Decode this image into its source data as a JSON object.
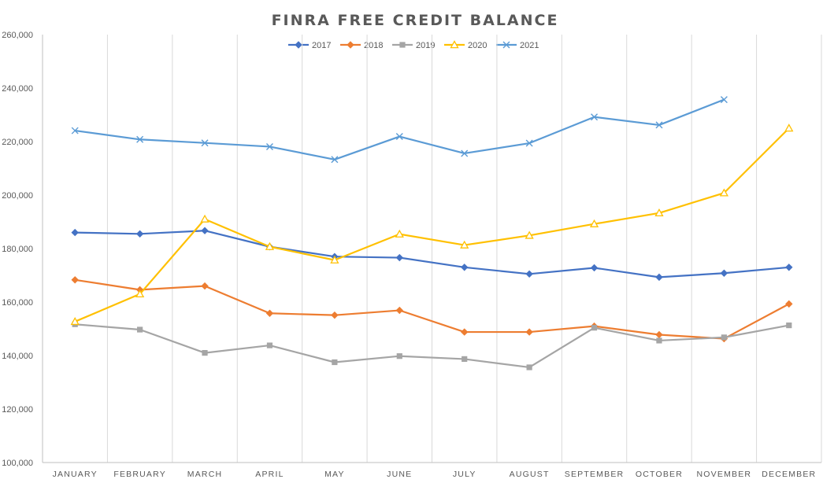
{
  "chart_data": {
    "type": "line",
    "title": "FINRA FREE CREDIT BALANCE",
    "categories": [
      "JANUARY",
      "FEBRUARY",
      "MARCH",
      "APRIL",
      "MAY",
      "JUNE",
      "JULY",
      "AUGUST",
      "SEPTEMBER",
      "OCTOBER",
      "NOVEMBER",
      "DECEMBER"
    ],
    "ylim": [
      100000,
      260000
    ],
    "yticks": [
      100000,
      120000,
      140000,
      160000,
      180000,
      200000,
      220000,
      240000,
      260000
    ],
    "ytick_labels": [
      "100,000",
      "120,000",
      "140,000",
      "160,000",
      "180,000",
      "200,000",
      "220,000",
      "240,000",
      "260,000"
    ],
    "grid": "vertical",
    "legend": "top-center",
    "series": [
      {
        "name": "2017",
        "color": "#4472C4",
        "marker": "diamond",
        "values": [
          186000,
          185500,
          186700,
          180700,
          177000,
          176600,
          173000,
          170500,
          172800,
          169300,
          170800,
          173000
        ]
      },
      {
        "name": "2018",
        "color": "#ED7D31",
        "marker": "diamond",
        "values": [
          168300,
          164600,
          166000,
          155800,
          155100,
          156900,
          148800,
          148800,
          151000,
          147800,
          146300,
          159300
        ]
      },
      {
        "name": "2019",
        "color": "#A5A5A5",
        "marker": "square",
        "values": [
          151700,
          149700,
          141000,
          143800,
          137500,
          139800,
          138700,
          135600,
          150400,
          145600,
          146800,
          151300
        ]
      },
      {
        "name": "2020",
        "color": "#FFC000",
        "marker": "triangle",
        "values": [
          152700,
          163000,
          191000,
          180700,
          175700,
          185400,
          181300,
          184900,
          189200,
          193300,
          200800,
          225000
        ]
      },
      {
        "name": "2021",
        "color": "#5B9BD5",
        "marker": "x",
        "values": [
          224100,
          220800,
          219500,
          218100,
          213300,
          221900,
          215600,
          219400,
          229200,
          226200,
          235700,
          null
        ]
      }
    ]
  }
}
